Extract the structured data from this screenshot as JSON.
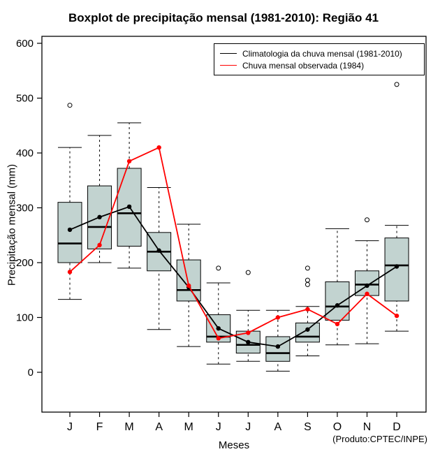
{
  "title": "Boxplot de precipitação mensal (1981-2010): Região 41",
  "xlabel": "Meses",
  "ylabel": "Precipitação mensal (mm)",
  "credit": "(Produto:CPTEC/INPE)",
  "legend": [
    {
      "label": "Climatologia da chuva mensal (1981-2010)",
      "color": "#000000"
    },
    {
      "label": "Chuva mensal observada (1984)",
      "color": "#ff0000"
    }
  ],
  "chart_data": {
    "type": "boxplot",
    "title": "Boxplot de precipitação mensal (1981-2010): Região 41",
    "xlabel": "Meses",
    "ylabel": "Precipitação mensal (mm)",
    "categories": [
      "J",
      "F",
      "M",
      "A",
      "M",
      "J",
      "J",
      "A",
      "S",
      "O",
      "N",
      "D"
    ],
    "ylim": [
      0,
      600
    ],
    "yticks": [
      0,
      100,
      200,
      300,
      400,
      500,
      600
    ],
    "grid": false,
    "legend_position": "top-right",
    "box_fill": "#c2d3d0",
    "boxes": [
      {
        "low": 133,
        "q1": 200,
        "median": 235,
        "q3": 310,
        "high": 410,
        "outliers": [
          487
        ]
      },
      {
        "low": 200,
        "q1": 225,
        "median": 265,
        "q3": 340,
        "high": 432,
        "outliers": []
      },
      {
        "low": 190,
        "q1": 230,
        "median": 290,
        "q3": 372,
        "high": 455,
        "outliers": []
      },
      {
        "low": 78,
        "q1": 185,
        "median": 220,
        "q3": 255,
        "high": 337,
        "outliers": []
      },
      {
        "low": 47,
        "q1": 130,
        "median": 150,
        "q3": 205,
        "high": 270,
        "outliers": []
      },
      {
        "low": 15,
        "q1": 55,
        "median": 65,
        "q3": 105,
        "high": 163,
        "outliers": [
          190
        ]
      },
      {
        "low": 20,
        "q1": 35,
        "median": 50,
        "q3": 75,
        "high": 113,
        "outliers": [
          182
        ]
      },
      {
        "low": 2,
        "q1": 20,
        "median": 35,
        "q3": 65,
        "high": 113,
        "outliers": []
      },
      {
        "low": 30,
        "q1": 55,
        "median": 65,
        "q3": 90,
        "high": 120,
        "outliers": [
          160,
          168,
          190
        ]
      },
      {
        "low": 50,
        "q1": 95,
        "median": 120,
        "q3": 165,
        "high": 262,
        "outliers": []
      },
      {
        "low": 52,
        "q1": 140,
        "median": 160,
        "q3": 185,
        "high": 240,
        "outliers": [
          278
        ]
      },
      {
        "low": 75,
        "q1": 130,
        "median": 195,
        "q3": 245,
        "high": 268,
        "outliers": [
          525
        ]
      }
    ],
    "series": [
      {
        "name": "Climatologia da chuva mensal (1981-2010)",
        "color": "#000000",
        "values": [
          260,
          283,
          302,
          222,
          155,
          80,
          55,
          47,
          78,
          122,
          158,
          193
        ]
      },
      {
        "name": "Chuva mensal observada (1984)",
        "color": "#ff0000",
        "values": [
          183,
          232,
          385,
          410,
          158,
          62,
          72,
          100,
          115,
          88,
          143,
          103
        ]
      }
    ]
  }
}
